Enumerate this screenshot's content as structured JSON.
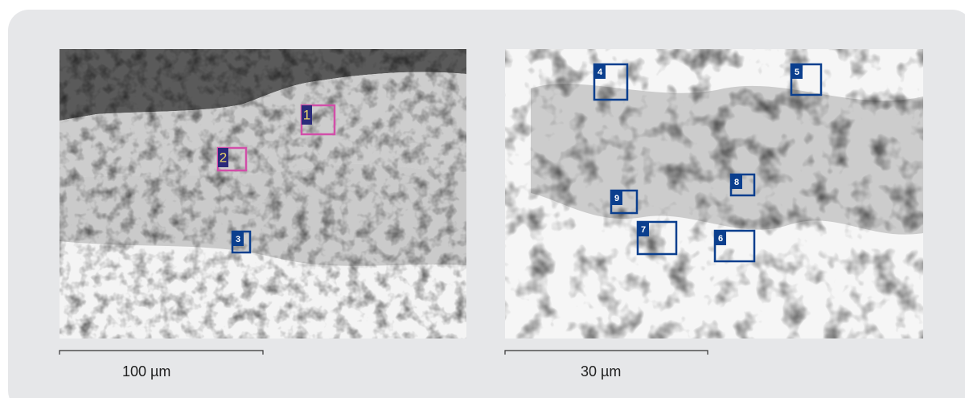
{
  "panels": [
    {
      "regions": [
        {
          "label": "1"
        },
        {
          "label": "2"
        },
        {
          "label": "3"
        }
      ],
      "scale_bar": "100 µm"
    },
    {
      "regions": [
        {
          "label": "4"
        },
        {
          "label": "5"
        },
        {
          "label": "8"
        },
        {
          "label": "9"
        },
        {
          "label": "7"
        },
        {
          "label": "6"
        }
      ],
      "scale_bar": "30 µm"
    }
  ]
}
